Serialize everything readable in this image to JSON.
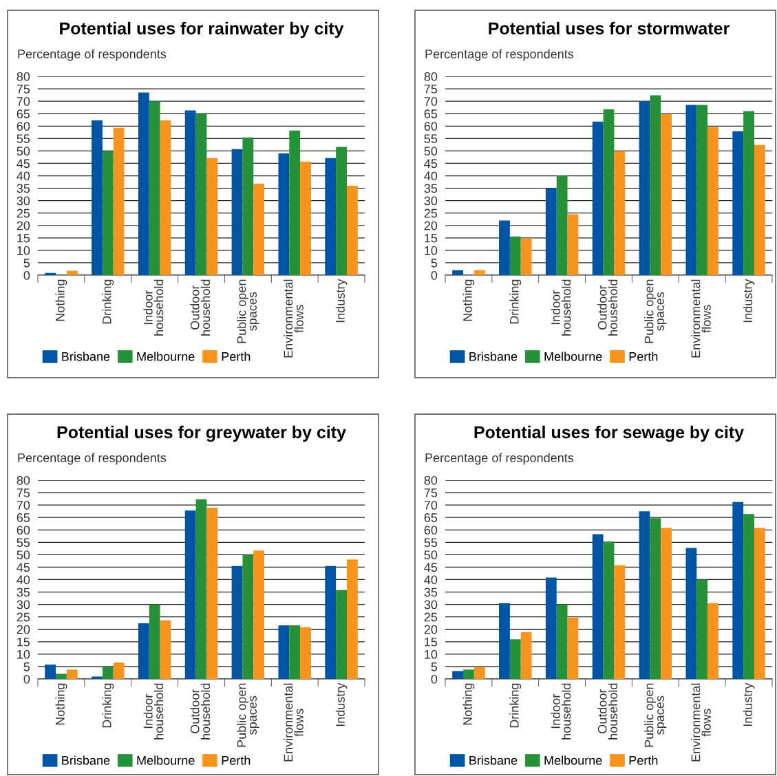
{
  "chart_data": [
    {
      "type": "bar",
      "title": "Potential uses for rainwater by city",
      "ylabel": "Percentage of respondents",
      "categories": [
        "Nothing",
        "Drinking",
        "Indoor\nhousehold",
        "Outdoor\nhousehold",
        "Public open\nspaces",
        "Environmental\nflows",
        "Industry"
      ],
      "ylim": [
        0,
        80
      ],
      "yticks": [
        0,
        5,
        10,
        15,
        20,
        25,
        30,
        35,
        40,
        45,
        50,
        55,
        60,
        65,
        70,
        75,
        80
      ],
      "grid": "y",
      "legend": "bottom",
      "series": [
        {
          "name": "Brisbane",
          "color": "#0054a6",
          "values": [
            0.9,
            62.3,
            73.5,
            66.3,
            50.7,
            49,
            47.1
          ]
        },
        {
          "name": "Melbourne",
          "color": "#259139",
          "values": [
            0,
            50,
            70,
            65,
            55.4,
            58.2,
            51.6
          ]
        },
        {
          "name": "Perth",
          "color": "#f7941d",
          "values": [
            1.8,
            59.3,
            62.3,
            47.1,
            36.8,
            45.7,
            36
          ]
        }
      ]
    },
    {
      "type": "bar",
      "title": "Potential uses for stormwater",
      "ylabel": "Percentage of respondents",
      "categories": [
        "Nothing",
        "Drinking",
        "Indoor\nhousehold",
        "Outdoor\nhousehold",
        "Public open\nspaces",
        "Environmental\nflows",
        "Industry"
      ],
      "ylim": [
        0,
        80
      ],
      "yticks": [
        0,
        5,
        10,
        15,
        20,
        25,
        30,
        35,
        40,
        45,
        50,
        55,
        60,
        65,
        70,
        75,
        80
      ],
      "grid": "y",
      "legend": "bottom",
      "series": [
        {
          "name": "Brisbane",
          "color": "#0054a6",
          "values": [
            2,
            22,
            35,
            61.8,
            70,
            68.5,
            57.9
          ]
        },
        {
          "name": "Melbourne",
          "color": "#259139",
          "values": [
            0,
            15.6,
            40.1,
            66.8,
            72.4,
            68.5,
            66
          ]
        },
        {
          "name": "Perth",
          "color": "#f7941d",
          "values": [
            2,
            14.9,
            24.5,
            50,
            64.9,
            59.6,
            52.4
          ]
        }
      ]
    },
    {
      "type": "bar",
      "title": "Potential uses for greywater by city",
      "ylabel": "Percentage of respondents",
      "categories": [
        "Nothing",
        "Drinking",
        "Indoor\nhousehold",
        "Outdoor\nhousehold",
        "Public open\nspaces",
        "Environmental\nflows",
        "Industry"
      ],
      "ylim": [
        0,
        80
      ],
      "yticks": [
        0,
        5,
        10,
        15,
        20,
        25,
        30,
        35,
        40,
        45,
        50,
        55,
        60,
        65,
        70,
        75,
        80
      ],
      "grid": "y",
      "legend": "bottom",
      "series": [
        {
          "name": "Brisbane",
          "color": "#0054a6",
          "values": [
            5.8,
            1,
            22.4,
            67.8,
            45.5,
            21.6,
            45.5
          ]
        },
        {
          "name": "Melbourne",
          "color": "#259139",
          "values": [
            2.1,
            4.9,
            30,
            72.3,
            50,
            21.6,
            35.8
          ]
        },
        {
          "name": "Perth",
          "color": "#f7941d",
          "values": [
            3.8,
            6.6,
            23.6,
            68.9,
            51.7,
            20.8,
            48.1
          ]
        }
      ]
    },
    {
      "type": "bar",
      "title": "Potential uses for sewage by city",
      "ylabel": "Percentage of respondents",
      "categories": [
        "Nothing",
        "Drinking",
        "Indoor\nhousehold",
        "Outdoor\nhousehold",
        "Public open\nspaces",
        "Environmental\nflows",
        "Industry"
      ],
      "ylim": [
        0,
        80
      ],
      "yticks": [
        0,
        5,
        10,
        15,
        20,
        25,
        30,
        35,
        40,
        45,
        50,
        55,
        60,
        65,
        70,
        75,
        80
      ],
      "grid": "y",
      "legend": "bottom",
      "series": [
        {
          "name": "Brisbane",
          "color": "#0054a6",
          "values": [
            3.2,
            30.5,
            40.8,
            58.3,
            67.5,
            52.7,
            71.2
          ]
        },
        {
          "name": "Melbourne",
          "color": "#259139",
          "values": [
            3.8,
            16,
            30,
            55.3,
            64.7,
            40,
            66.4
          ]
        },
        {
          "name": "Perth",
          "color": "#f7941d",
          "values": [
            4.9,
            18.8,
            24.7,
            45.8,
            60.8,
            30.5,
            60.8
          ]
        }
      ]
    }
  ]
}
